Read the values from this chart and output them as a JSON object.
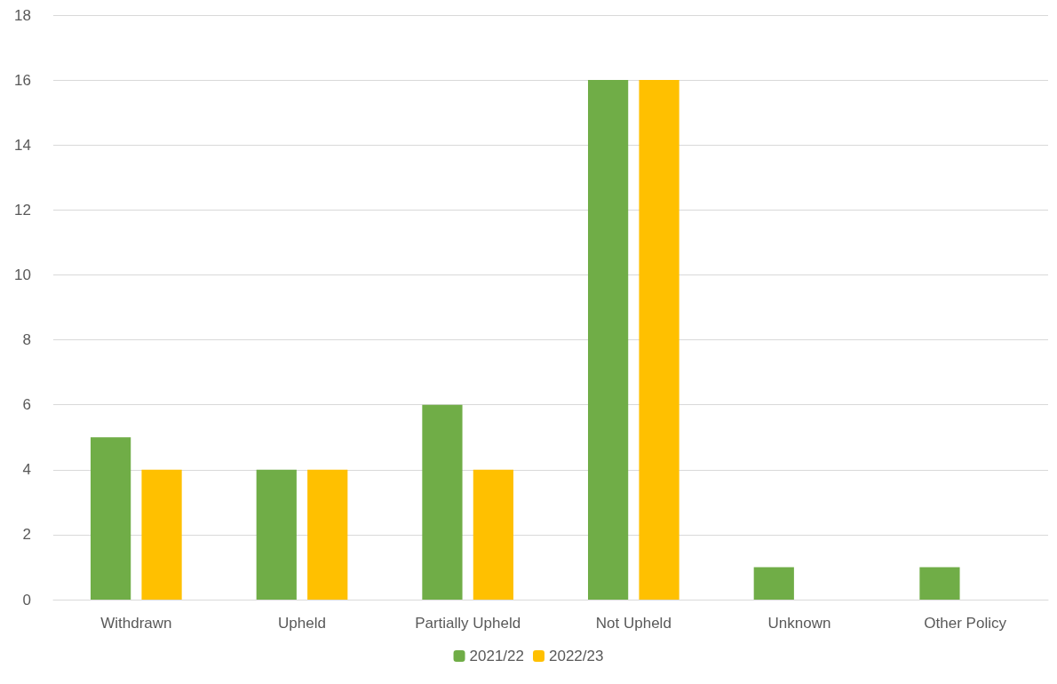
{
  "chart_data": {
    "type": "bar",
    "categories": [
      "Withdrawn",
      "Upheld",
      "Partially Upheld",
      "Not Upheld",
      "Unknown",
      "Other Policy"
    ],
    "series": [
      {
        "name": "2021/22",
        "color": "#70ad47",
        "values": [
          5,
          4,
          6,
          16,
          1,
          1
        ]
      },
      {
        "name": "2022/23",
        "color": "#ffc000",
        "values": [
          4,
          4,
          4,
          16,
          0,
          0
        ]
      }
    ],
    "ylim": [
      0,
      18
    ],
    "yticks": [
      0,
      2,
      4,
      6,
      8,
      10,
      12,
      14,
      16,
      18
    ],
    "grid": "y",
    "legend": "bottom"
  }
}
